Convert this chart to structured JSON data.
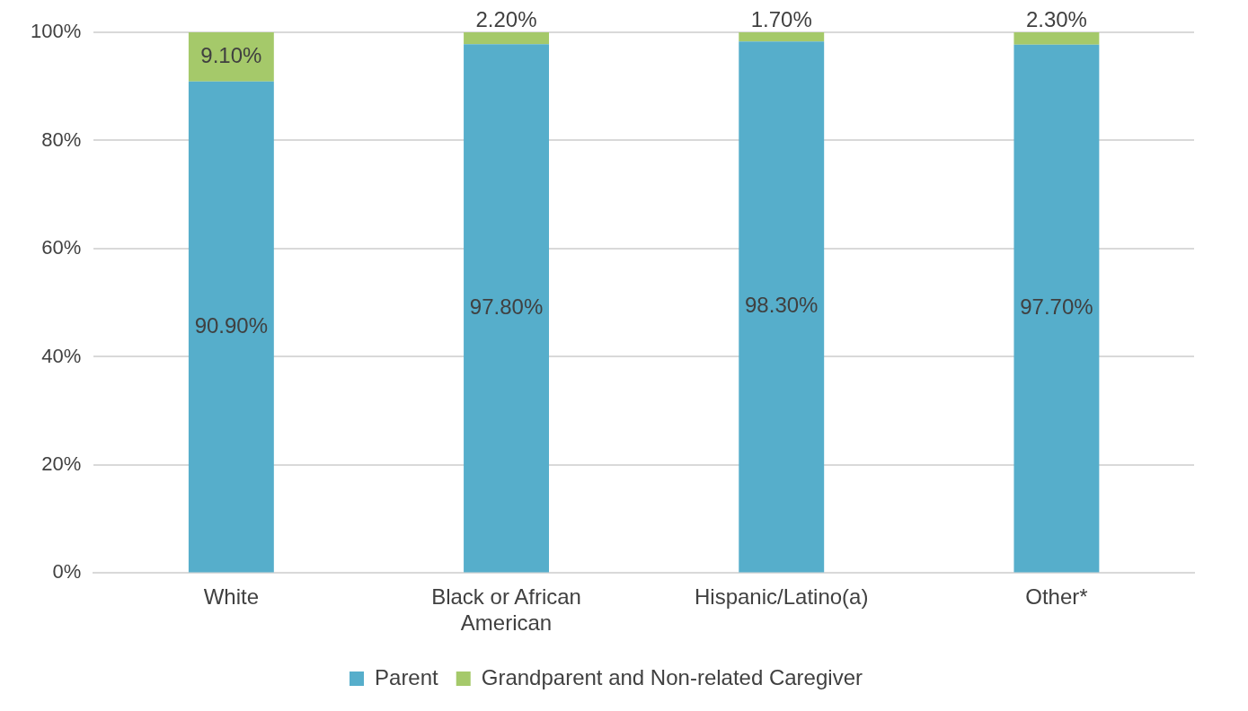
{
  "chart_data": {
    "type": "bar",
    "stacked": true,
    "categories": [
      "White",
      "Black or African American",
      "Hispanic/Latino(a)",
      "Other*"
    ],
    "series": [
      {
        "name": "Parent",
        "color": "#56aecb",
        "values": [
          90.9,
          97.8,
          98.3,
          97.7
        ],
        "value_labels": [
          "90.90%",
          "97.80%",
          "98.30%",
          "97.70%"
        ]
      },
      {
        "name": "Grandparent and Non-related Caregiver",
        "color": "#a5c96a",
        "values": [
          9.1,
          2.2,
          1.7,
          2.3
        ],
        "value_labels": [
          "9.10%",
          "2.20%",
          "1.70%",
          "2.30%"
        ]
      }
    ],
    "ylim": [
      0,
      100
    ],
    "yticks": [
      {
        "value": 0,
        "label": "0%"
      },
      {
        "value": 20,
        "label": "20%"
      },
      {
        "value": 40,
        "label": "40%"
      },
      {
        "value": 60,
        "label": "60%"
      },
      {
        "value": 80,
        "label": "80%"
      },
      {
        "value": 100,
        "label": "100%"
      }
    ],
    "grid": "y",
    "legend": "bottom"
  }
}
